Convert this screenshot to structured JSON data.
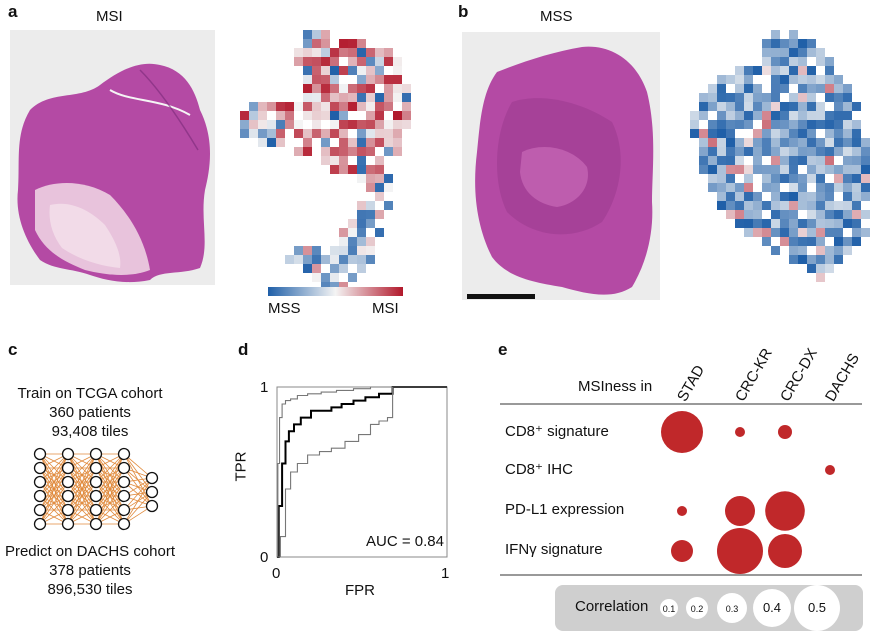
{
  "panels": {
    "a": {
      "letter": "a",
      "title": "MSI",
      "colorbar_left": "MSS",
      "colorbar_right": "MSI"
    },
    "b": {
      "letter": "b",
      "title": "MSS"
    },
    "c": {
      "letter": "c",
      "train_line1": "Train on TCGA cohort",
      "train_line2": "360 patients",
      "train_line3": "93,408 tiles",
      "predict_line1": "Predict on DACHS cohort",
      "predict_line2": "378 patients",
      "predict_line3": "896,530 tiles"
    },
    "d": {
      "letter": "d",
      "ylabel": "TPR",
      "xlabel": "FPR",
      "y_tick_top": "1",
      "y_tick_bottom": "0",
      "x_tick_left": "0",
      "x_tick_right": "1",
      "auc_text": "AUC = 0.84"
    },
    "e": {
      "letter": "e",
      "row_header": "MSIness in",
      "legend_title": "Correlation"
    }
  },
  "colors": {
    "mss": "#1f5fa8",
    "msi": "#b2182b",
    "dot": "#c0282a",
    "tissue": "#b44aa4",
    "network": "#e08a3c"
  },
  "chart_data": [
    {
      "type": "line",
      "panel": "d",
      "xlabel": "FPR",
      "ylabel": "TPR",
      "xlim": [
        0,
        1
      ],
      "ylim": [
        0,
        1
      ],
      "annotation": "AUC = 0.84",
      "series": [
        {
          "role": "roc",
          "x": [
            0,
            0.01,
            0.03,
            0.05,
            0.07,
            0.1,
            0.14,
            0.2,
            0.26,
            0.32,
            0.38,
            0.45,
            0.52,
            0.6,
            0.68,
            0.75,
            1.0
          ],
          "y": [
            0,
            0.3,
            0.55,
            0.68,
            0.74,
            0.78,
            0.82,
            0.86,
            0.86,
            0.88,
            0.9,
            0.92,
            0.94,
            0.96,
            1.0,
            1.0,
            1.0
          ]
        },
        {
          "role": "ci-upper",
          "x": [
            0,
            0.005,
            0.015,
            0.03,
            0.05,
            0.08,
            0.12,
            0.18,
            0.26,
            0.35,
            0.45,
            0.55,
            0.65,
            1.0
          ],
          "y": [
            0,
            0.55,
            0.82,
            0.9,
            0.92,
            0.93,
            0.95,
            0.96,
            0.97,
            0.98,
            0.99,
            1.0,
            1.0,
            1.0
          ]
        },
        {
          "role": "ci-lower",
          "x": [
            0,
            0.02,
            0.05,
            0.08,
            0.12,
            0.18,
            0.25,
            0.32,
            0.4,
            0.48,
            0.55,
            0.6,
            0.65,
            0.68,
            1.0
          ],
          "y": [
            0,
            0.12,
            0.4,
            0.5,
            0.55,
            0.6,
            0.62,
            0.64,
            0.68,
            0.72,
            0.78,
            0.8,
            0.82,
            1.0,
            1.0
          ]
        }
      ]
    },
    {
      "type": "bubble",
      "panel": "e",
      "columns": [
        "STAD",
        "CRC-KR",
        "CRC-DX",
        "DACHS"
      ],
      "rows": [
        "CD8⁺ signature",
        "CD8⁺ IHC",
        "PD-L1 expression",
        "IFNγ signature"
      ],
      "legend_values": [
        "0.1",
        "0.2",
        "0.3",
        "0.4",
        "0.5"
      ],
      "values": [
        [
          0.45,
          0.05,
          0.1,
          null
        ],
        [
          null,
          null,
          null,
          0.05
        ],
        [
          0.05,
          0.3,
          0.42,
          null
        ],
        [
          0.2,
          0.5,
          0.35,
          null
        ]
      ]
    }
  ]
}
